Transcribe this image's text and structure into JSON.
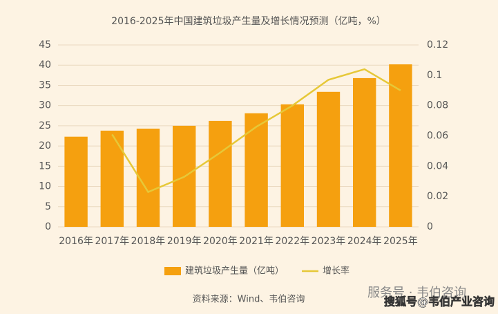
{
  "chart_data": {
    "type": "bar-line",
    "title": "2016-2025年中国建筑垃圾产生量及增长情况预测（亿吨，%）",
    "categories": [
      "2016年",
      "2017年",
      "2018年",
      "2019年",
      "2020年",
      "2021年",
      "2022年",
      "2023年",
      "2024年",
      "2025年"
    ],
    "series": [
      {
        "name": "建筑垃圾产生量（亿吨）",
        "color": "#f5a00f",
        "type": "bar",
        "values": [
          22.3,
          23.8,
          24.3,
          25.0,
          26.2,
          28.1,
          30.3,
          33.4,
          36.8,
          40.2
        ]
      },
      {
        "name": "增长率",
        "color": "#e6c838",
        "type": "line",
        "axis": "y2",
        "values": [
          null,
          0.061,
          0.023,
          0.033,
          0.049,
          0.066,
          0.08,
          0.097,
          0.104,
          0.09
        ]
      }
    ],
    "ylim": [
      0,
      45
    ],
    "yticks": [
      0,
      5,
      10,
      15,
      20,
      25,
      30,
      35,
      40,
      45
    ],
    "y2lim": [
      0,
      0.12
    ],
    "y2ticks": [
      0,
      0.02,
      0.04,
      0.06,
      0.08,
      0.1,
      0.12
    ],
    "grid": true,
    "legend": "bottom",
    "source": "资料来源：Wind、韦伯咨询",
    "watermarks": [
      "服务号 · 韦伯咨询",
      "搜狐号@韦伯产业咨询"
    ]
  }
}
